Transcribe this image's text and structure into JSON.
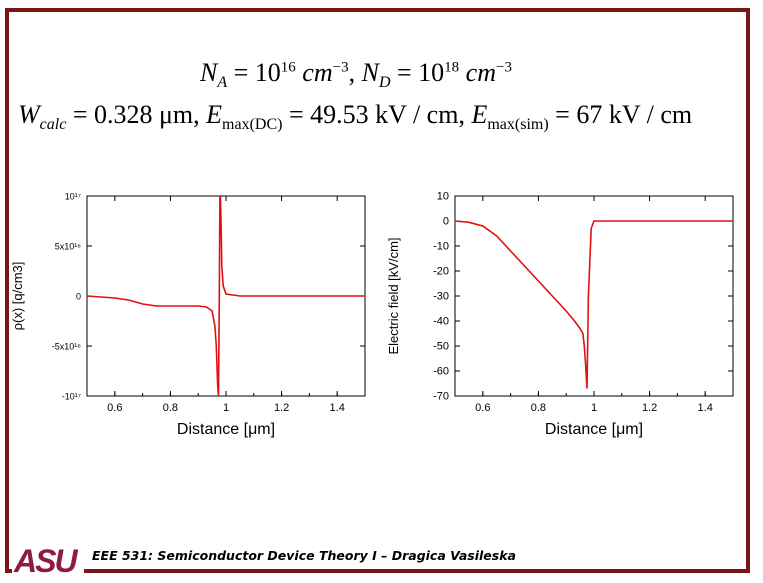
{
  "equations": {
    "line1": {
      "na_symbol": "N",
      "na_sub": "A",
      "na_eq": " = 10",
      "na_exp": "16",
      "na_unit": " cm",
      "na_unit_exp": "−3",
      "sep": ",   ",
      "nd_symbol": "N",
      "nd_sub": "D",
      "nd_eq": " = 10",
      "nd_exp": "18",
      "nd_unit": " cm",
      "nd_unit_exp": "−3"
    },
    "line2": {
      "w_symbol": "W",
      "w_sub": "calc",
      "w_value": " = 0.328 μm,  ",
      "edc_symbol": "E",
      "edc_sub": "max(DC)",
      "edc_value": " = 49.53 kV / cm,  ",
      "esim_symbol": "E",
      "esim_sub": "max(sim)",
      "esim_value": " = 67 kV / cm"
    }
  },
  "footer": {
    "logo_text": "ASU",
    "text": "EEE 531: Semiconductor Device Theory I – Dragica Vasileska"
  },
  "colors": {
    "frame": "#7a1616",
    "curve": "#e01010",
    "logo": "#8c1d40"
  },
  "chart_data": [
    {
      "type": "line",
      "title": "",
      "xlabel": "Distance [μm]",
      "ylabel": "ρ(x) [q/cm3]",
      "xlim": [
        0.5,
        1.5
      ],
      "ylim": [
        -1e+17,
        1e+17
      ],
      "x_ticks": [
        "0.6",
        "0.8",
        "1",
        "1.2",
        "1.4"
      ],
      "y_ticks": [
        {
          "value": 1e+17,
          "label": "10¹⁷"
        },
        {
          "value": 5e+16,
          "label": "5x10¹⁶"
        },
        {
          "value": 0,
          "label": "0"
        },
        {
          "value": -5e+16,
          "label": "-5x10¹⁶"
        },
        {
          "value": -1e+17,
          "label": "-10¹⁷"
        }
      ],
      "series": [
        {
          "x": [
            0.5,
            0.55,
            0.6,
            0.65,
            0.7,
            0.75,
            0.8,
            0.85,
            0.9,
            0.93,
            0.95,
            0.96,
            0.965,
            0.97,
            0.973,
            0.976,
            0.978,
            0.98,
            0.983,
            0.985,
            0.99,
            1.0,
            1.05,
            1.2,
            1.4,
            1.5
          ],
          "y": [
            0,
            -1000000000000000.0,
            -2000000000000000.0,
            -4000000000000000.0,
            -8000000000000000.0,
            -1e+16,
            -1e+16,
            -1e+16,
            -1e+16,
            -1.1e+16,
            -1.5e+16,
            -3e+16,
            -5e+16,
            -9e+16,
            -1e+17,
            0,
            1e+17,
            1e+17,
            6e+16,
            3e+16,
            1e+16,
            2000000000000000.0,
            0,
            0,
            0,
            0
          ]
        }
      ]
    },
    {
      "type": "line",
      "title": "",
      "xlabel": "Distance [μm]",
      "ylabel": "Electric field [kV/cm]",
      "xlim": [
        0.5,
        1.5
      ],
      "ylim": [
        -70,
        10
      ],
      "x_ticks": [
        "0.6",
        "0.8",
        "1",
        "1.2",
        "1.4"
      ],
      "y_ticks": [
        {
          "value": 10,
          "label": "10"
        },
        {
          "value": 0,
          "label": "0"
        },
        {
          "value": -10,
          "label": "-10"
        },
        {
          "value": -20,
          "label": "-20"
        },
        {
          "value": -30,
          "label": "-30"
        },
        {
          "value": -40,
          "label": "-40"
        },
        {
          "value": -50,
          "label": "-50"
        },
        {
          "value": -60,
          "label": "-60"
        },
        {
          "value": -70,
          "label": "-70"
        }
      ],
      "series": [
        {
          "x": [
            0.5,
            0.55,
            0.6,
            0.65,
            0.7,
            0.75,
            0.8,
            0.85,
            0.9,
            0.93,
            0.95,
            0.96,
            0.965,
            0.97,
            0.975,
            0.98,
            0.99,
            1.0,
            1.05,
            1.2,
            1.4,
            1.5
          ],
          "y": [
            0,
            -0.5,
            -2,
            -6,
            -12,
            -18,
            -24,
            -30,
            -36,
            -40,
            -43,
            -45,
            -50,
            -58,
            -67,
            -30,
            -3,
            0,
            0,
            0,
            0,
            0
          ]
        }
      ]
    }
  ]
}
